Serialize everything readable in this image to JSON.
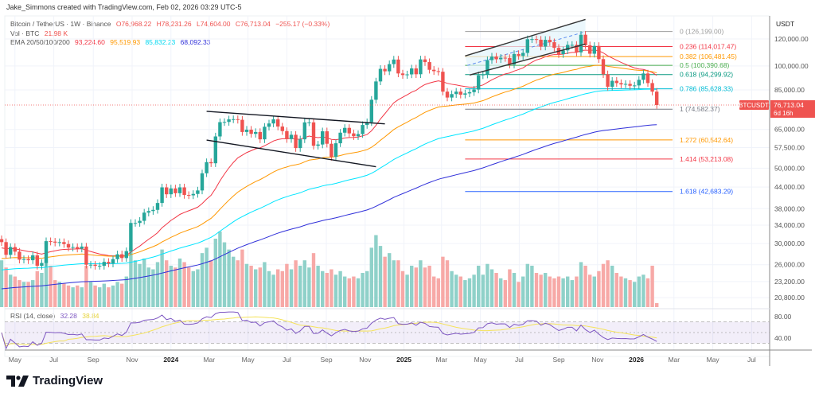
{
  "credit": "Jake_Simmons created with TradingView.com, Feb 02, 2026 03:29 UTC-5",
  "legend": {
    "symbol": "Bitcoin / TetherUS · 1W · Binance",
    "open": "O76,968.22",
    "high": "H78,231.26",
    "low": "L74,604.00",
    "close": "C76,713.04",
    "change": "−255.17 (−0.33%)",
    "vol_label": "Vol · BTC",
    "vol_value": "21.98 K",
    "ema_label": "EMA 20/50/100/200",
    "ema_values": [
      "93,224.60",
      "95,519.93",
      "85,832.23",
      "68,092.33"
    ],
    "rsi_label": "RSI (14, close)",
    "rsi_value": "32.28",
    "rsi_ma_value": "38.84"
  },
  "colors": {
    "up": "#26a69a",
    "down": "#ef5350",
    "vol_up": "#8fd1c9",
    "vol_down": "#f7a9a7",
    "ema": [
      "#f23645",
      "#ff9800",
      "#00e5ff",
      "#2f2fd9"
    ],
    "rsi": "#7e57c2",
    "rsi_ma": "#f5e35b",
    "price_tag": "#ef5350"
  },
  "price_axis": {
    "currency": "USDT",
    "scale": "log",
    "ticks": [
      "120,000.00",
      "100,000.00",
      "85,000.00",
      "65,000.00",
      "57,500.00",
      "50,000.00",
      "44,000.00",
      "38,000.00",
      "34,000.00",
      "30,000.00",
      "26,000.00",
      "23,200.00",
      "20,800.00"
    ],
    "tick_values": [
      120000,
      100000,
      85000,
      65000,
      57500,
      50000,
      44000,
      38000,
      34000,
      30000,
      26000,
      23200,
      20800
    ],
    "current_symbol": "BTCUSDT",
    "current_price": "76,713.04",
    "countdown": "6d 16h"
  },
  "rsi_axis": {
    "ticks": [
      "80.00",
      "40.00"
    ],
    "tick_values": [
      80,
      40
    ],
    "bands": [
      70,
      50,
      30
    ]
  },
  "time_axis": [
    {
      "label": "May",
      "date": "2023-05-01"
    },
    {
      "label": "Jul",
      "date": "2023-07-01"
    },
    {
      "label": "Sep",
      "date": "2023-09-01"
    },
    {
      "label": "Nov",
      "date": "2023-11-01"
    },
    {
      "label": "2024",
      "date": "2024-01-01",
      "bold": true
    },
    {
      "label": "Mar",
      "date": "2024-03-01"
    },
    {
      "label": "May",
      "date": "2024-05-01"
    },
    {
      "label": "Jul",
      "date": "2024-07-01"
    },
    {
      "label": "Sep",
      "date": "2024-09-01"
    },
    {
      "label": "Nov",
      "date": "2024-11-01"
    },
    {
      "label": "2025",
      "date": "2025-01-01",
      "bold": true
    },
    {
      "label": "Mar",
      "date": "2025-03-01"
    },
    {
      "label": "May",
      "date": "2025-05-01"
    },
    {
      "label": "Jul",
      "date": "2025-07-01"
    },
    {
      "label": "Sep",
      "date": "2025-09-01"
    },
    {
      "label": "Nov",
      "date": "2025-11-01"
    },
    {
      "label": "2026",
      "date": "2026-01-01",
      "bold": true
    },
    {
      "label": "Mar",
      "date": "2026-03-01"
    },
    {
      "label": "May",
      "date": "2026-05-01"
    },
    {
      "label": "Jul",
      "date": "2026-07-01"
    }
  ],
  "chart_data": {
    "type": "candlestick",
    "interval": "1W",
    "start_date": "2023-04-10",
    "close": [
      30300,
      27800,
      29300,
      28400,
      26900,
      27000,
      26800,
      27700,
      25800,
      26300,
      30500,
      30400,
      30200,
      30300,
      29900,
      29200,
      29300,
      29000,
      29400,
      26000,
      26000,
      25800,
      25800,
      26500,
      26200,
      27000,
      27900,
      27200,
      28500,
      34500,
      34500,
      35000,
      37000,
      37400,
      37700,
      39500,
      43900,
      41900,
      43600,
      42200,
      43900,
      41700,
      41600,
      42000,
      43000,
      48300,
      52100,
      51700,
      62000,
      68300,
      68400,
      69600,
      69700,
      69400,
      63900,
      64900,
      63100,
      63900,
      60800,
      66200,
      67700,
      69600,
      66300,
      64300,
      60900,
      62700,
      57300,
      60800,
      68200,
      68200,
      58200,
      58700,
      64200,
      59000,
      54000,
      59200,
      63600,
      65700,
      63300,
      62100,
      63000,
      67000,
      68300,
      79500,
      90000,
      98000,
      96400,
      101200,
      104400,
      95000,
      94000,
      94400,
      98300,
      94500,
      104500,
      102600,
      97400,
      96500,
      96100,
      84000,
      80700,
      82600,
      84000,
      82300,
      83000,
      83700,
      85200,
      93800,
      94300,
      104000,
      106500,
      104600,
      105700,
      105500,
      100900,
      108400,
      107000,
      109200,
      119800,
      119900,
      119400,
      114000,
      119300,
      117400,
      113000,
      108300,
      111100,
      115300,
      115300,
      109600,
      123500,
      115000,
      108600,
      114500,
      104700,
      94500,
      86800,
      90400,
      89000,
      88200,
      88500,
      87400,
      87600,
      91000,
      95000,
      89000,
      84000,
      76713.04
    ],
    "volume_k": [
      260,
      220,
      180,
      170,
      150,
      140,
      140,
      150,
      200,
      190,
      260,
      230,
      150,
      140,
      130,
      120,
      110,
      120,
      110,
      230,
      140,
      120,
      110,
      130,
      110,
      120,
      140,
      130,
      170,
      330,
      260,
      240,
      270,
      220,
      210,
      250,
      320,
      260,
      230,
      220,
      270,
      250,
      220,
      200,
      210,
      300,
      330,
      260,
      380,
      420,
      360,
      320,
      280,
      260,
      320,
      240,
      230,
      210,
      220,
      250,
      200,
      180,
      210,
      200,
      240,
      210,
      260,
      230,
      260,
      220,
      300,
      230,
      200,
      190,
      210,
      180,
      200,
      170,
      160,
      170,
      160,
      190,
      200,
      330,
      400,
      340,
      280,
      300,
      260,
      260,
      200,
      180,
      230,
      220,
      260,
      220,
      230,
      170,
      160,
      280,
      260,
      200,
      180,
      170,
      150,
      160,
      180,
      230,
      180,
      240,
      210,
      190,
      160,
      150,
      210,
      190,
      140,
      170,
      240,
      230,
      190,
      180,
      190,
      170,
      160,
      170,
      160,
      170,
      150,
      170,
      250,
      230,
      180,
      170,
      200,
      240,
      260,
      230,
      190,
      170,
      160,
      150,
      140,
      170,
      180,
      160,
      230,
      22
    ],
    "fib": {
      "start_date": "2025-04-07",
      "levels": [
        {
          "label": "0 (126,199.00)",
          "price": 126199,
          "color": "#9e9e9e"
        },
        {
          "label": "0.236 (114,017.47)",
          "price": 114017.47,
          "color": "#f23645"
        },
        {
          "label": "0.382 (106,481.45)",
          "price": 106481.45,
          "color": "#ff9800"
        },
        {
          "label": "0.5 (100,390.68)",
          "price": 100390.68,
          "color": "#4caf50"
        },
        {
          "label": "0.618 (94,299.92)",
          "price": 94299.92,
          "color": "#089981"
        },
        {
          "label": "0.786 (85,628.33)",
          "price": 85628.33,
          "color": "#00bcd4"
        },
        {
          "label": "1 (74,582.37)",
          "price": 74582.37,
          "color": "#787b86"
        },
        {
          "label": "1.272 (60,542.64)",
          "price": 60542.64,
          "color": "#ff9800"
        },
        {
          "label": "1.414 (53,213.08)",
          "price": 53213.08,
          "color": "#f23645"
        },
        {
          "label": "1.618 (42,683.29)",
          "price": 42683.29,
          "color": "#2962ff"
        }
      ]
    },
    "trendlines": [
      {
        "from": [
          "2024-02-26",
          73500
        ],
        "to": [
          "2024-12-02",
          67500
        ],
        "color": "#131722"
      },
      {
        "from": [
          "2024-02-26",
          60500
        ],
        "to": [
          "2024-11-18",
          50500
        ],
        "color": "#131722"
      },
      {
        "from": [
          "2025-04-07",
          107000
        ],
        "to": [
          "2025-10-13",
          137000
        ],
        "color": "#333333"
      },
      {
        "from": [
          "2025-04-14",
          94000
        ],
        "to": [
          "2025-10-13",
          116000
        ],
        "color": "#333333"
      }
    ]
  }
}
